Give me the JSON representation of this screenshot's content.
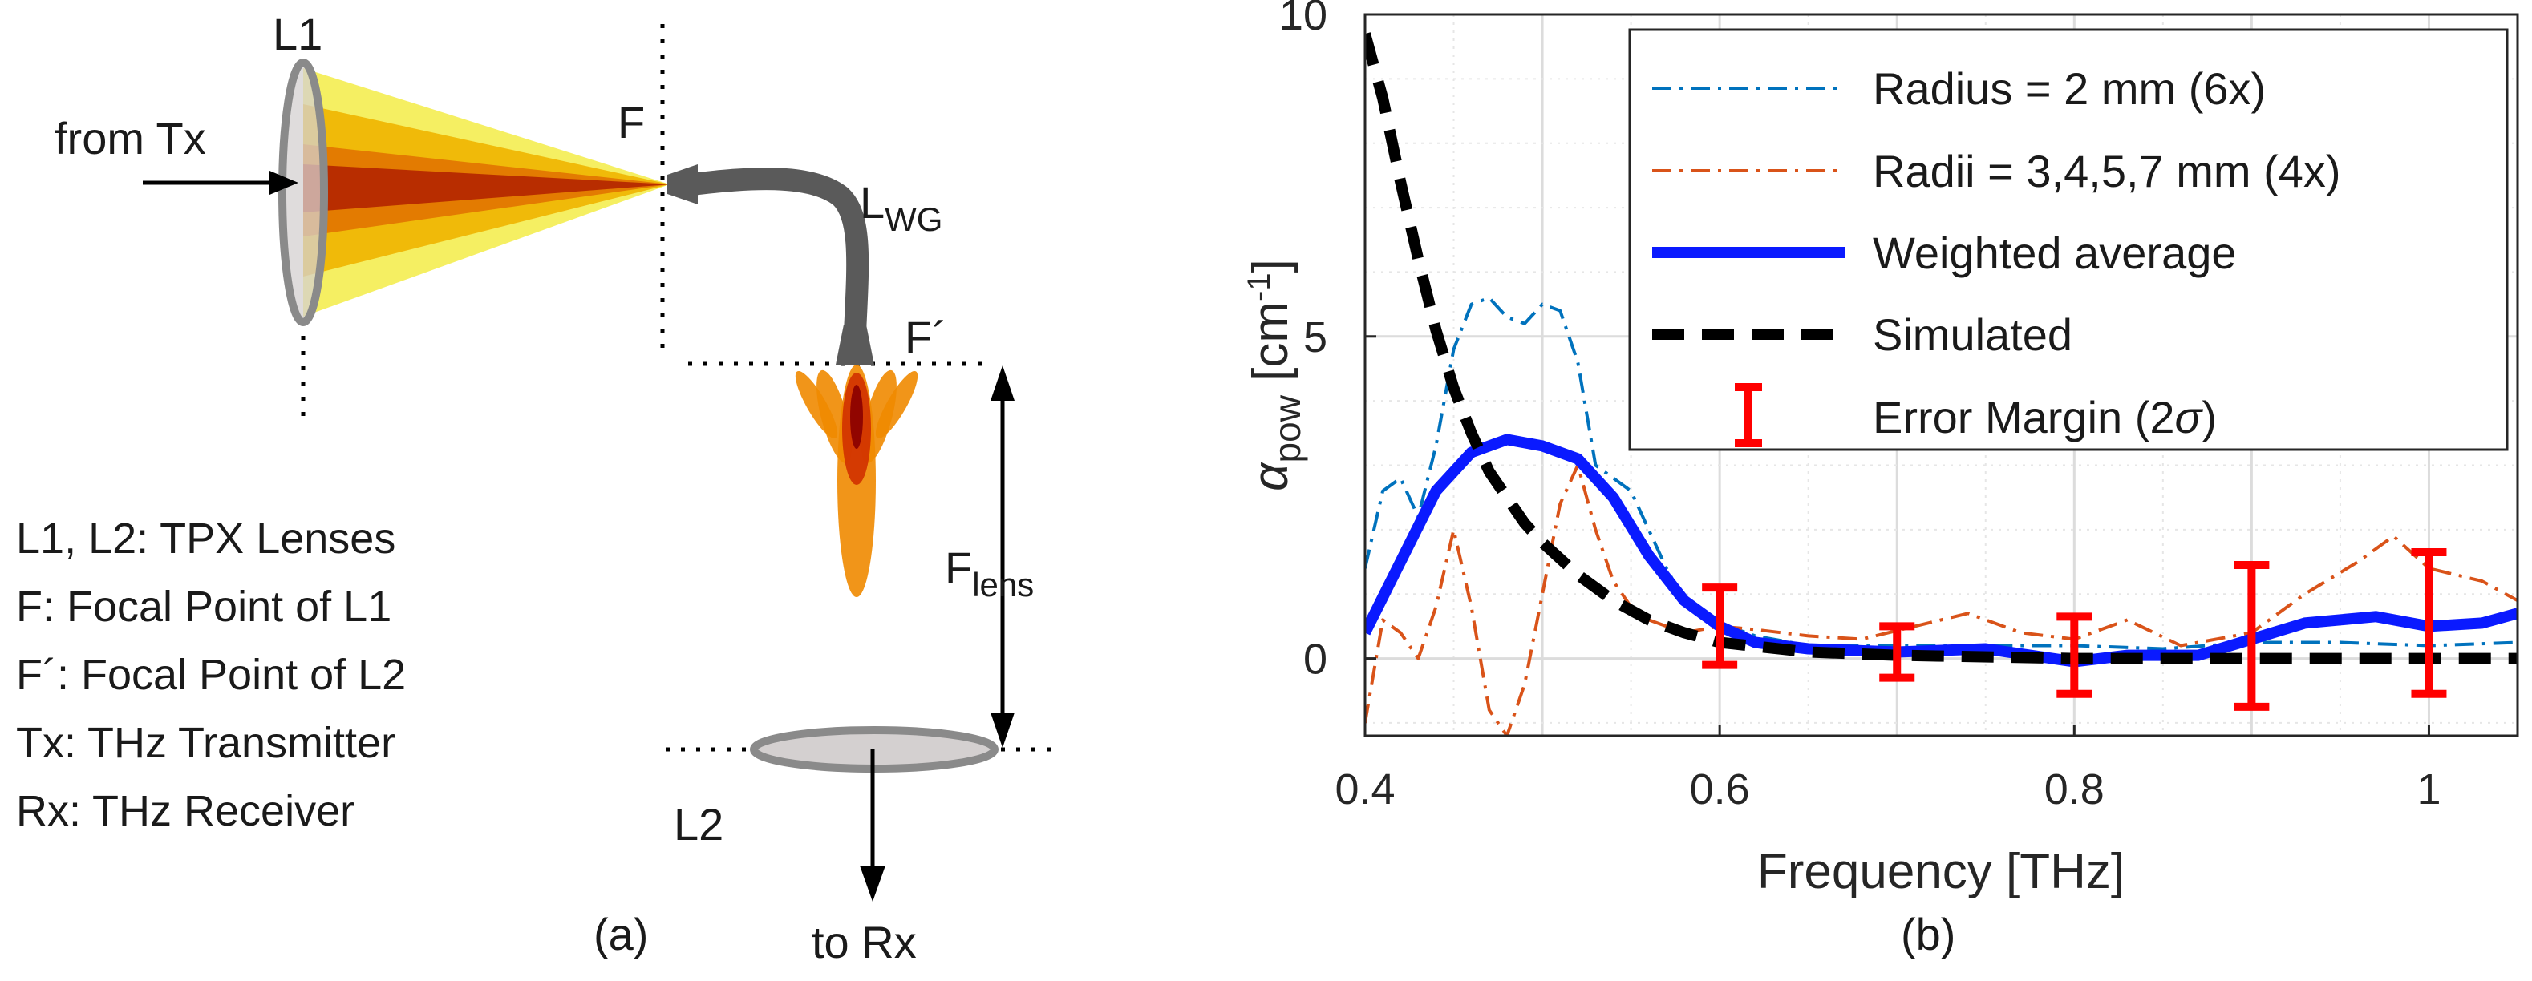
{
  "panel_a": {
    "label_L1": "L1",
    "label_from_tx": "from Tx",
    "label_F": "F",
    "label_LWG_main": "L",
    "label_LWG_sub": "WG",
    "label_F_prime": "F´",
    "label_Flens_main": "F",
    "label_Flens_sub": "lens",
    "label_L2": "L2",
    "label_to_rx": "to Rx",
    "caption": "(a)",
    "legend_lines": [
      "L1, L2: TPX Lenses",
      "F: Focal Point of L1",
      "F´: Focal Point of L2",
      "Tx: THz Transmitter",
      "Rx: THz Receiver"
    ],
    "colors": {
      "outer_beam": "#f4ee5a",
      "mid_beam": "#f0b400",
      "inner_beam": "#e07000",
      "core_beam": "#b02000",
      "lens_fill": "#d4d0d0",
      "lens_edge": "#8a8a8a",
      "waveguide": "#5a5a5a"
    }
  },
  "panel_b": {
    "caption": "(b)",
    "chart_data": {
      "type": "line",
      "xlabel": "Frequency [THz]",
      "ylabel_main": "α",
      "ylabel_sub": "pow",
      "ylabel_unit_start": " [cm",
      "ylabel_unit_sup": "-1",
      "ylabel_unit_end": "]",
      "xlim": [
        0.4,
        1.05
      ],
      "ylim": [
        -1.2,
        10
      ],
      "xticks": [
        0.4,
        0.6,
        0.8,
        1.0
      ],
      "xtick_labels": [
        "0.4",
        "0.6",
        "0.8",
        "1"
      ],
      "yticks": [
        0,
        5,
        10
      ],
      "ytick_labels": [
        "0",
        "5",
        "10"
      ],
      "grid": true,
      "legend_position": "top-right",
      "series": [
        {
          "name": "Radius = 2 mm (6x)",
          "color": "#0072bd",
          "style": "dashdot",
          "x": [
            0.4,
            0.41,
            0.42,
            0.43,
            0.44,
            0.45,
            0.46,
            0.47,
            0.48,
            0.49,
            0.5,
            0.51,
            0.52,
            0.53,
            0.54,
            0.55,
            0.56,
            0.57,
            0.58,
            0.6,
            0.62,
            0.65,
            0.7,
            0.75,
            0.8,
            0.85,
            0.9,
            0.95,
            1.0,
            1.05
          ],
          "y": [
            1.4,
            2.6,
            2.8,
            2.2,
            3.3,
            4.8,
            5.5,
            5.6,
            5.3,
            5.2,
            5.5,
            5.4,
            4.6,
            3.0,
            2.8,
            2.6,
            2.0,
            1.4,
            0.9,
            0.55,
            0.35,
            0.2,
            0.2,
            0.2,
            0.2,
            0.15,
            0.25,
            0.25,
            0.2,
            0.25
          ]
        },
        {
          "name": "Radii = 3,4,5,7 mm (4x)",
          "color": "#d95319",
          "style": "dashdot",
          "x": [
            0.4,
            0.41,
            0.42,
            0.43,
            0.44,
            0.45,
            0.46,
            0.47,
            0.48,
            0.49,
            0.5,
            0.51,
            0.52,
            0.53,
            0.54,
            0.55,
            0.56,
            0.57,
            0.58,
            0.6,
            0.62,
            0.65,
            0.68,
            0.71,
            0.74,
            0.77,
            0.8,
            0.83,
            0.86,
            0.9,
            0.93,
            0.96,
            0.98,
            1.0,
            1.03,
            1.05
          ],
          "y": [
            -1.0,
            0.6,
            0.4,
            0.0,
            0.8,
            2.0,
            0.8,
            -0.8,
            -1.2,
            -0.4,
            1.0,
            2.4,
            3.0,
            2.0,
            1.2,
            0.8,
            0.6,
            0.5,
            0.4,
            0.5,
            0.45,
            0.35,
            0.3,
            0.5,
            0.7,
            0.4,
            0.3,
            0.6,
            0.2,
            0.4,
            1.0,
            1.5,
            1.9,
            1.4,
            1.2,
            0.9
          ]
        },
        {
          "name": "Weighted average",
          "color": "#0a1aff",
          "style": "solid",
          "x": [
            0.4,
            0.42,
            0.44,
            0.46,
            0.48,
            0.5,
            0.52,
            0.54,
            0.56,
            0.58,
            0.6,
            0.62,
            0.65,
            0.7,
            0.75,
            0.8,
            0.83,
            0.87,
            0.9,
            0.93,
            0.97,
            1.0,
            1.03,
            1.05
          ],
          "y": [
            0.4,
            1.5,
            2.6,
            3.2,
            3.4,
            3.3,
            3.1,
            2.5,
            1.6,
            0.9,
            0.5,
            0.25,
            0.15,
            0.1,
            0.15,
            -0.05,
            0.05,
            0.05,
            0.3,
            0.55,
            0.65,
            0.5,
            0.55,
            0.7
          ]
        },
        {
          "name": "Simulated",
          "color": "#000000",
          "style": "dashed",
          "x": [
            0.4,
            0.41,
            0.42,
            0.43,
            0.44,
            0.45,
            0.46,
            0.47,
            0.48,
            0.49,
            0.5,
            0.52,
            0.54,
            0.56,
            0.58,
            0.6,
            0.65,
            0.7,
            0.8,
            0.9,
            1.0,
            1.05
          ],
          "y": [
            9.7,
            8.7,
            7.4,
            6.2,
            5.1,
            4.2,
            3.5,
            2.9,
            2.5,
            2.1,
            1.8,
            1.3,
            0.9,
            0.6,
            0.4,
            0.25,
            0.1,
            0.05,
            0.0,
            0.0,
            0.0,
            0.0
          ]
        }
      ],
      "error_bars": {
        "name": "Error Margin (2σ)",
        "color": "#ff0000",
        "x": [
          0.6,
          0.7,
          0.8,
          0.9,
          1.0
        ],
        "center": [
          0.5,
          0.1,
          0.05,
          0.35,
          0.55
        ],
        "half_width": [
          0.6,
          0.4,
          0.6,
          1.1,
          1.1
        ]
      }
    },
    "legend": {
      "entry1": "Radius = 2 mm (6x)",
      "entry2": "Radii = 3,4,5,7 mm (4x)",
      "entry3": "Weighted average",
      "entry4": "Simulated",
      "entry5_start": "Error Margin (2",
      "entry5_sigma": "σ",
      "entry5_end": ")"
    }
  }
}
